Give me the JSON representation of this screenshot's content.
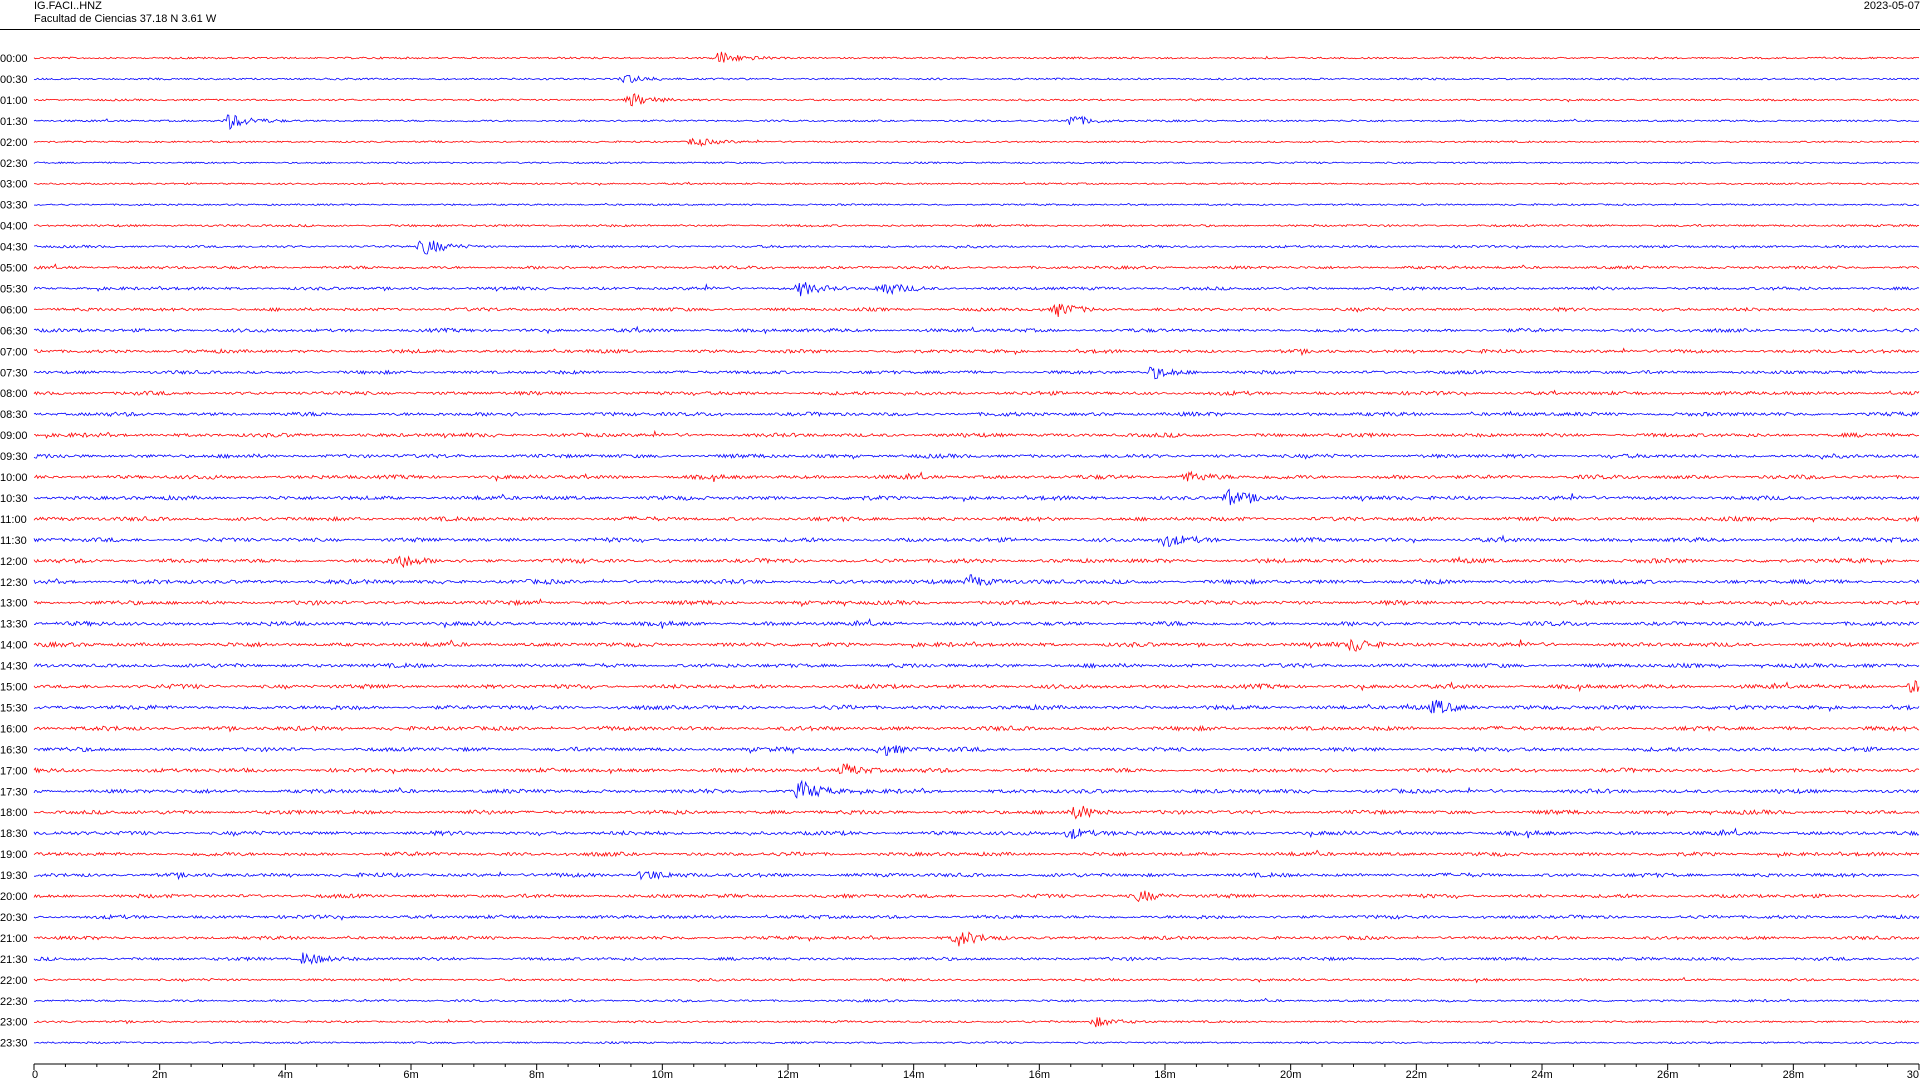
{
  "header": {
    "station": "IG.FACI..HNZ",
    "location": "Facultad de Ciencias  37.18 N 3.61 W",
    "date": "2023-05-07"
  },
  "colors": {
    "even_row": "#ff0000",
    "odd_row": "#0000ff",
    "axis": "#000000"
  },
  "chart_data": {
    "type": "line",
    "title": "",
    "xlabel": "",
    "ylabel": "",
    "xlim_minutes": [
      0,
      30
    ],
    "x_ticks": [
      "0",
      "2m",
      "4m",
      "6m",
      "8m",
      "10m",
      "12m",
      "14m",
      "16m",
      "18m",
      "20m",
      "22m",
      "24m",
      "26m",
      "28m",
      "30"
    ],
    "row_labels": [
      "00:00",
      "00:30",
      "01:00",
      "01:30",
      "02:00",
      "02:30",
      "03:00",
      "03:30",
      "04:00",
      "04:30",
      "05:00",
      "05:30",
      "06:00",
      "06:30",
      "07:00",
      "07:30",
      "08:00",
      "08:30",
      "09:00",
      "09:30",
      "10:00",
      "10:30",
      "11:00",
      "11:30",
      "12:00",
      "12:30",
      "13:00",
      "13:30",
      "14:00",
      "14:30",
      "15:00",
      "15:30",
      "16:00",
      "16:30",
      "17:00",
      "17:30",
      "18:00",
      "18:30",
      "19:00",
      "19:30",
      "20:00",
      "20:30",
      "21:00",
      "21:30",
      "22:00",
      "22:30",
      "23:00",
      "23:30"
    ],
    "row_noise_level": [
      0.2,
      0.2,
      0.2,
      0.2,
      0.15,
      0.15,
      0.15,
      0.15,
      0.3,
      0.35,
      0.5,
      0.55,
      0.6,
      0.65,
      0.65,
      0.6,
      0.7,
      0.75,
      0.75,
      0.75,
      0.8,
      0.8,
      0.8,
      0.8,
      0.85,
      0.85,
      0.85,
      0.85,
      0.85,
      0.8,
      0.85,
      0.85,
      0.85,
      0.8,
      0.8,
      0.8,
      0.8,
      0.8,
      0.75,
      0.75,
      0.7,
      0.65,
      0.6,
      0.55,
      0.35,
      0.3,
      0.25,
      0.2
    ],
    "events": [
      {
        "row": "00:00",
        "minute": 10.9,
        "amp": 1.0
      },
      {
        "row": "00:30",
        "minute": 9.4,
        "amp": 0.7
      },
      {
        "row": "01:00",
        "minute": 9.5,
        "amp": 1.0
      },
      {
        "row": "01:30",
        "minute": 3.1,
        "amp": 1.2
      },
      {
        "row": "01:30",
        "minute": 16.5,
        "amp": 0.9
      },
      {
        "row": "02:00",
        "minute": 10.5,
        "amp": 0.7
      },
      {
        "row": "04:30",
        "minute": 6.2,
        "amp": 1.3
      },
      {
        "row": "05:30",
        "minute": 12.2,
        "amp": 1.0
      },
      {
        "row": "05:30",
        "minute": 13.5,
        "amp": 0.9
      },
      {
        "row": "06:00",
        "minute": 16.3,
        "amp": 0.9
      },
      {
        "row": "07:30",
        "minute": 17.8,
        "amp": 0.9
      },
      {
        "row": "10:00",
        "minute": 18.3,
        "amp": 0.8
      },
      {
        "row": "10:30",
        "minute": 19.0,
        "amp": 1.1
      },
      {
        "row": "11:30",
        "minute": 18.0,
        "amp": 0.9
      },
      {
        "row": "12:00",
        "minute": 5.8,
        "amp": 0.9
      },
      {
        "row": "12:30",
        "minute": 14.9,
        "amp": 1.0
      },
      {
        "row": "14:00",
        "minute": 21.0,
        "amp": 1.0
      },
      {
        "row": "15:00",
        "minute": 29.9,
        "amp": 1.0
      },
      {
        "row": "15:30",
        "minute": 22.3,
        "amp": 1.0
      },
      {
        "row": "16:30",
        "minute": 13.5,
        "amp": 0.9
      },
      {
        "row": "17:00",
        "minute": 12.9,
        "amp": 0.9
      },
      {
        "row": "17:30",
        "minute": 12.2,
        "amp": 1.5
      },
      {
        "row": "18:00",
        "minute": 16.6,
        "amp": 1.0
      },
      {
        "row": "18:30",
        "minute": 16.5,
        "amp": 0.9
      },
      {
        "row": "19:30",
        "minute": 9.7,
        "amp": 0.8
      },
      {
        "row": "20:00",
        "minute": 17.6,
        "amp": 0.8
      },
      {
        "row": "21:00",
        "minute": 14.7,
        "amp": 1.1
      },
      {
        "row": "21:30",
        "minute": 4.3,
        "amp": 1.0
      },
      {
        "row": "23:00",
        "minute": 16.9,
        "amp": 0.7
      }
    ]
  }
}
